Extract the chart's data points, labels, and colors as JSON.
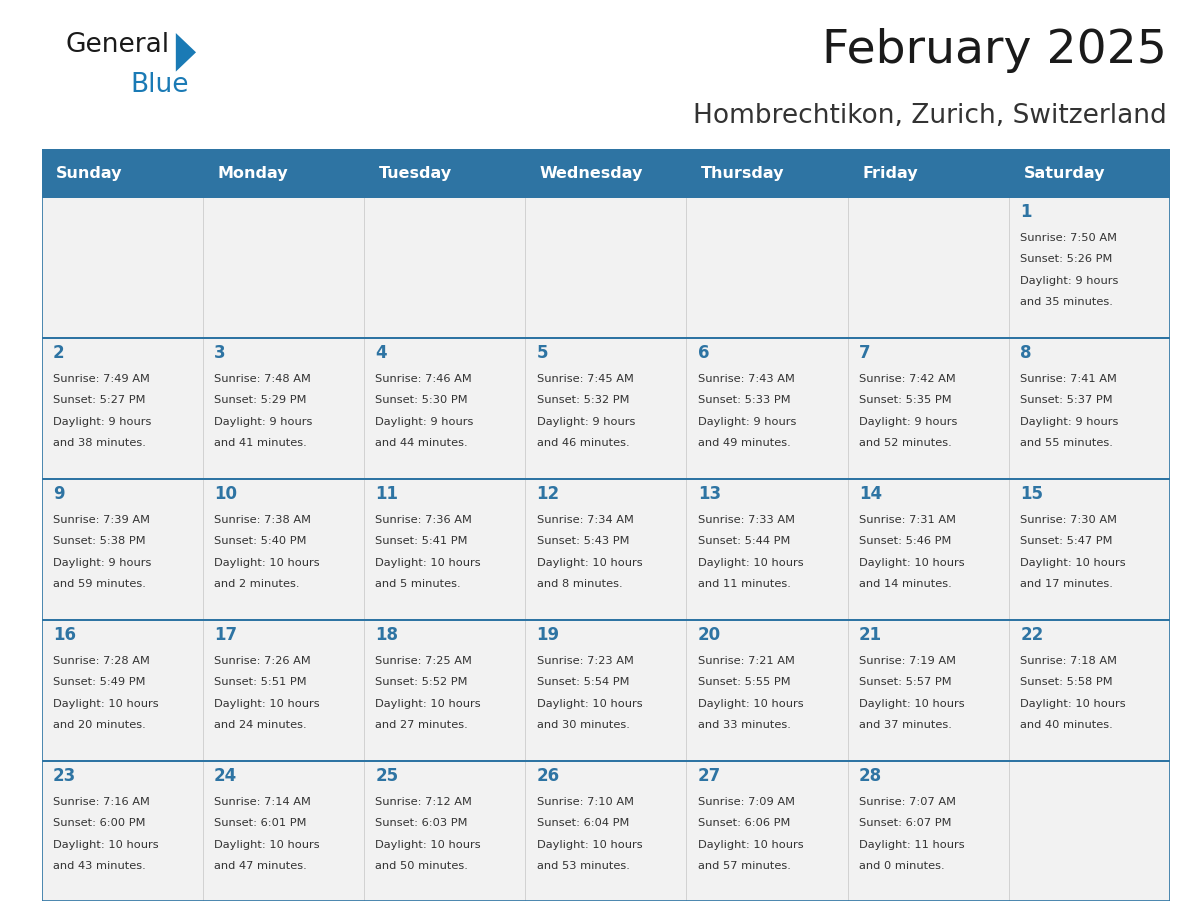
{
  "title": "February 2025",
  "subtitle": "Hombrechtikon, Zurich, Switzerland",
  "header_bg_color": "#2e74a3",
  "header_text_color": "#ffffff",
  "cell_bg_color": "#f2f2f2",
  "border_color": "#2e74a3",
  "grid_color": "#cccccc",
  "day_names": [
    "Sunday",
    "Monday",
    "Tuesday",
    "Wednesday",
    "Thursday",
    "Friday",
    "Saturday"
  ],
  "title_color": "#1a1a1a",
  "subtitle_color": "#333333",
  "day_number_color": "#2e74a3",
  "info_color": "#333333",
  "logo_black": "#1a1a1a",
  "logo_blue": "#1a7ab5",
  "logo_triangle": "#1a7ab5",
  "calendar": [
    [
      null,
      null,
      null,
      null,
      null,
      null,
      {
        "day": "1",
        "sunrise": "7:50 AM",
        "sunset": "5:26 PM",
        "daylight": "9 hours and 35 minutes"
      }
    ],
    [
      {
        "day": "2",
        "sunrise": "7:49 AM",
        "sunset": "5:27 PM",
        "daylight": "9 hours and 38 minutes"
      },
      {
        "day": "3",
        "sunrise": "7:48 AM",
        "sunset": "5:29 PM",
        "daylight": "9 hours and 41 minutes"
      },
      {
        "day": "4",
        "sunrise": "7:46 AM",
        "sunset": "5:30 PM",
        "daylight": "9 hours and 44 minutes"
      },
      {
        "day": "5",
        "sunrise": "7:45 AM",
        "sunset": "5:32 PM",
        "daylight": "9 hours and 46 minutes"
      },
      {
        "day": "6",
        "sunrise": "7:43 AM",
        "sunset": "5:33 PM",
        "daylight": "9 hours and 49 minutes"
      },
      {
        "day": "7",
        "sunrise": "7:42 AM",
        "sunset": "5:35 PM",
        "daylight": "9 hours and 52 minutes"
      },
      {
        "day": "8",
        "sunrise": "7:41 AM",
        "sunset": "5:37 PM",
        "daylight": "9 hours and 55 minutes"
      }
    ],
    [
      {
        "day": "9",
        "sunrise": "7:39 AM",
        "sunset": "5:38 PM",
        "daylight": "9 hours and 59 minutes"
      },
      {
        "day": "10",
        "sunrise": "7:38 AM",
        "sunset": "5:40 PM",
        "daylight": "10 hours and 2 minutes"
      },
      {
        "day": "11",
        "sunrise": "7:36 AM",
        "sunset": "5:41 PM",
        "daylight": "10 hours and 5 minutes"
      },
      {
        "day": "12",
        "sunrise": "7:34 AM",
        "sunset": "5:43 PM",
        "daylight": "10 hours and 8 minutes"
      },
      {
        "day": "13",
        "sunrise": "7:33 AM",
        "sunset": "5:44 PM",
        "daylight": "10 hours and 11 minutes"
      },
      {
        "day": "14",
        "sunrise": "7:31 AM",
        "sunset": "5:46 PM",
        "daylight": "10 hours and 14 minutes"
      },
      {
        "day": "15",
        "sunrise": "7:30 AM",
        "sunset": "5:47 PM",
        "daylight": "10 hours and 17 minutes"
      }
    ],
    [
      {
        "day": "16",
        "sunrise": "7:28 AM",
        "sunset": "5:49 PM",
        "daylight": "10 hours and 20 minutes"
      },
      {
        "day": "17",
        "sunrise": "7:26 AM",
        "sunset": "5:51 PM",
        "daylight": "10 hours and 24 minutes"
      },
      {
        "day": "18",
        "sunrise": "7:25 AM",
        "sunset": "5:52 PM",
        "daylight": "10 hours and 27 minutes"
      },
      {
        "day": "19",
        "sunrise": "7:23 AM",
        "sunset": "5:54 PM",
        "daylight": "10 hours and 30 minutes"
      },
      {
        "day": "20",
        "sunrise": "7:21 AM",
        "sunset": "5:55 PM",
        "daylight": "10 hours and 33 minutes"
      },
      {
        "day": "21",
        "sunrise": "7:19 AM",
        "sunset": "5:57 PM",
        "daylight": "10 hours and 37 minutes"
      },
      {
        "day": "22",
        "sunrise": "7:18 AM",
        "sunset": "5:58 PM",
        "daylight": "10 hours and 40 minutes"
      }
    ],
    [
      {
        "day": "23",
        "sunrise": "7:16 AM",
        "sunset": "6:00 PM",
        "daylight": "10 hours and 43 minutes"
      },
      {
        "day": "24",
        "sunrise": "7:14 AM",
        "sunset": "6:01 PM",
        "daylight": "10 hours and 47 minutes"
      },
      {
        "day": "25",
        "sunrise": "7:12 AM",
        "sunset": "6:03 PM",
        "daylight": "10 hours and 50 minutes"
      },
      {
        "day": "26",
        "sunrise": "7:10 AM",
        "sunset": "6:04 PM",
        "daylight": "10 hours and 53 minutes"
      },
      {
        "day": "27",
        "sunrise": "7:09 AM",
        "sunset": "6:06 PM",
        "daylight": "10 hours and 57 minutes"
      },
      {
        "day": "28",
        "sunrise": "7:07 AM",
        "sunset": "6:07 PM",
        "daylight": "11 hours and 0 minutes"
      },
      null
    ]
  ]
}
